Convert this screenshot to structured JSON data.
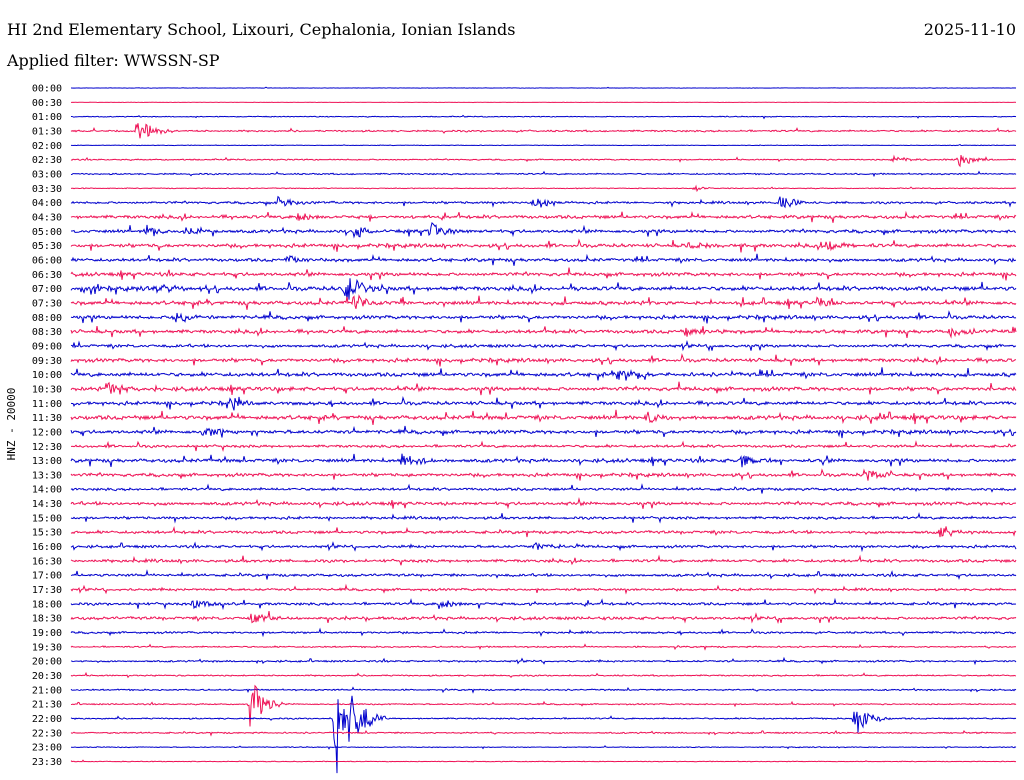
{
  "header": {
    "title": "HI 2nd Elementary School, Lixouri, Cephalonia, Ionian Islands",
    "date": "2025-11-10",
    "filter": "Applied filter: WWSSN-SP"
  },
  "chart_data": {
    "type": "line",
    "title": "HI 2nd Elementary School, Lixouri, Cephalonia, Ionian Islands",
    "ylabel": "HNZ - 20000",
    "grid": false,
    "colors": [
      "#0000cc",
      "#ee1155"
    ],
    "rows": [
      "00:00",
      "00:30",
      "01:00",
      "01:30",
      "02:00",
      "02:30",
      "03:00",
      "03:30",
      "04:00",
      "04:30",
      "05:00",
      "05:30",
      "06:00",
      "06:30",
      "07:00",
      "07:30",
      "08:00",
      "08:30",
      "09:00",
      "09:30",
      "10:00",
      "10:30",
      "11:00",
      "11:30",
      "12:00",
      "12:30",
      "13:00",
      "13:30",
      "14:00",
      "14:30",
      "15:00",
      "15:30",
      "16:00",
      "16:30",
      "17:00",
      "17:30",
      "18:00",
      "18:30",
      "19:00",
      "19:30",
      "20:00",
      "20:30",
      "21:00",
      "21:30",
      "22:00",
      "22:30",
      "23:00",
      "23:30"
    ],
    "noise": [
      0.3,
      0.2,
      0.6,
      1.2,
      0.4,
      0.9,
      1.0,
      0.6,
      1.6,
      2.2,
      2.2,
      2.4,
      2.2,
      2.4,
      2.8,
      2.6,
      2.4,
      2.4,
      2.0,
      2.4,
      2.6,
      2.6,
      2.4,
      2.8,
      2.4,
      1.8,
      2.4,
      2.2,
      1.8,
      2.2,
      1.8,
      2.0,
      1.8,
      2.0,
      1.8,
      1.6,
      1.8,
      2.0,
      1.4,
      1.0,
      1.2,
      1.0,
      1.0,
      0.9,
      1.0,
      1.0,
      0.6,
      0.5
    ],
    "events": [
      {
        "row": 3,
        "t": 0.07,
        "amp": 14,
        "dur": 0.014
      },
      {
        "row": 5,
        "t": 0.94,
        "amp": 7,
        "dur": 0.012
      },
      {
        "row": 5,
        "t": 0.87,
        "amp": 3,
        "dur": 0.02
      },
      {
        "row": 7,
        "t": 0.66,
        "amp": 3,
        "dur": 0.01
      },
      {
        "row": 8,
        "t": 0.49,
        "amp": 8,
        "dur": 0.014
      },
      {
        "row": 8,
        "t": 0.75,
        "amp": 8,
        "dur": 0.014
      },
      {
        "row": 8,
        "t": 0.22,
        "amp": 6,
        "dur": 0.02
      },
      {
        "row": 9,
        "t": 0.24,
        "amp": 7,
        "dur": 0.012
      },
      {
        "row": 10,
        "t": 0.08,
        "amp": 7,
        "dur": 0.014
      },
      {
        "row": 10,
        "t": 0.12,
        "amp": 7,
        "dur": 0.014
      },
      {
        "row": 10,
        "t": 0.3,
        "amp": 9,
        "dur": 0.014
      },
      {
        "row": 10,
        "t": 0.38,
        "amp": 9,
        "dur": 0.014
      },
      {
        "row": 11,
        "t": 0.65,
        "amp": 5,
        "dur": 0.02
      },
      {
        "row": 11,
        "t": 0.8,
        "amp": 5,
        "dur": 0.014
      },
      {
        "row": 12,
        "t": 0.23,
        "amp": 6,
        "dur": 0.012
      },
      {
        "row": 14,
        "t": 0.09,
        "amp": 7,
        "dur": 0.016
      },
      {
        "row": 14,
        "t": 0.29,
        "amp": 16,
        "dur": 0.016
      },
      {
        "row": 15,
        "t": 0.3,
        "amp": 9,
        "dur": 0.014
      },
      {
        "row": 15,
        "t": 0.79,
        "amp": 6,
        "dur": 0.012
      },
      {
        "row": 16,
        "t": 0.11,
        "amp": 7,
        "dur": 0.014
      },
      {
        "row": 17,
        "t": 0.65,
        "amp": 6,
        "dur": 0.016
      },
      {
        "row": 17,
        "t": 0.93,
        "amp": 5,
        "dur": 0.02
      },
      {
        "row": 20,
        "t": 0.58,
        "amp": 10,
        "dur": 0.016
      },
      {
        "row": 21,
        "t": 0.04,
        "amp": 6,
        "dur": 0.02
      },
      {
        "row": 22,
        "t": 0.17,
        "amp": 7,
        "dur": 0.012
      },
      {
        "row": 23,
        "t": 0.61,
        "amp": 8,
        "dur": 0.014
      },
      {
        "row": 24,
        "t": 0.14,
        "amp": 6,
        "dur": 0.014
      },
      {
        "row": 26,
        "t": 0.35,
        "amp": 9,
        "dur": 0.016
      },
      {
        "row": 26,
        "t": 0.71,
        "amp": 6,
        "dur": 0.014
      },
      {
        "row": 27,
        "t": 0.84,
        "amp": 8,
        "dur": 0.014
      },
      {
        "row": 31,
        "t": 0.92,
        "amp": 9,
        "dur": 0.014
      },
      {
        "row": 32,
        "t": 0.49,
        "amp": 5,
        "dur": 0.018
      },
      {
        "row": 36,
        "t": 0.39,
        "amp": 8,
        "dur": 0.012
      },
      {
        "row": 36,
        "t": 0.13,
        "amp": 5,
        "dur": 0.016
      },
      {
        "row": 37,
        "t": 0.19,
        "amp": 5,
        "dur": 0.02
      },
      {
        "row": 43,
        "t": 0.19,
        "amp": 30,
        "dur": 0.012
      },
      {
        "row": 44,
        "t": 0.28,
        "amp": 60,
        "dur": 0.018
      },
      {
        "row": 44,
        "t": 0.83,
        "amp": 18,
        "dur": 0.012
      }
    ]
  }
}
